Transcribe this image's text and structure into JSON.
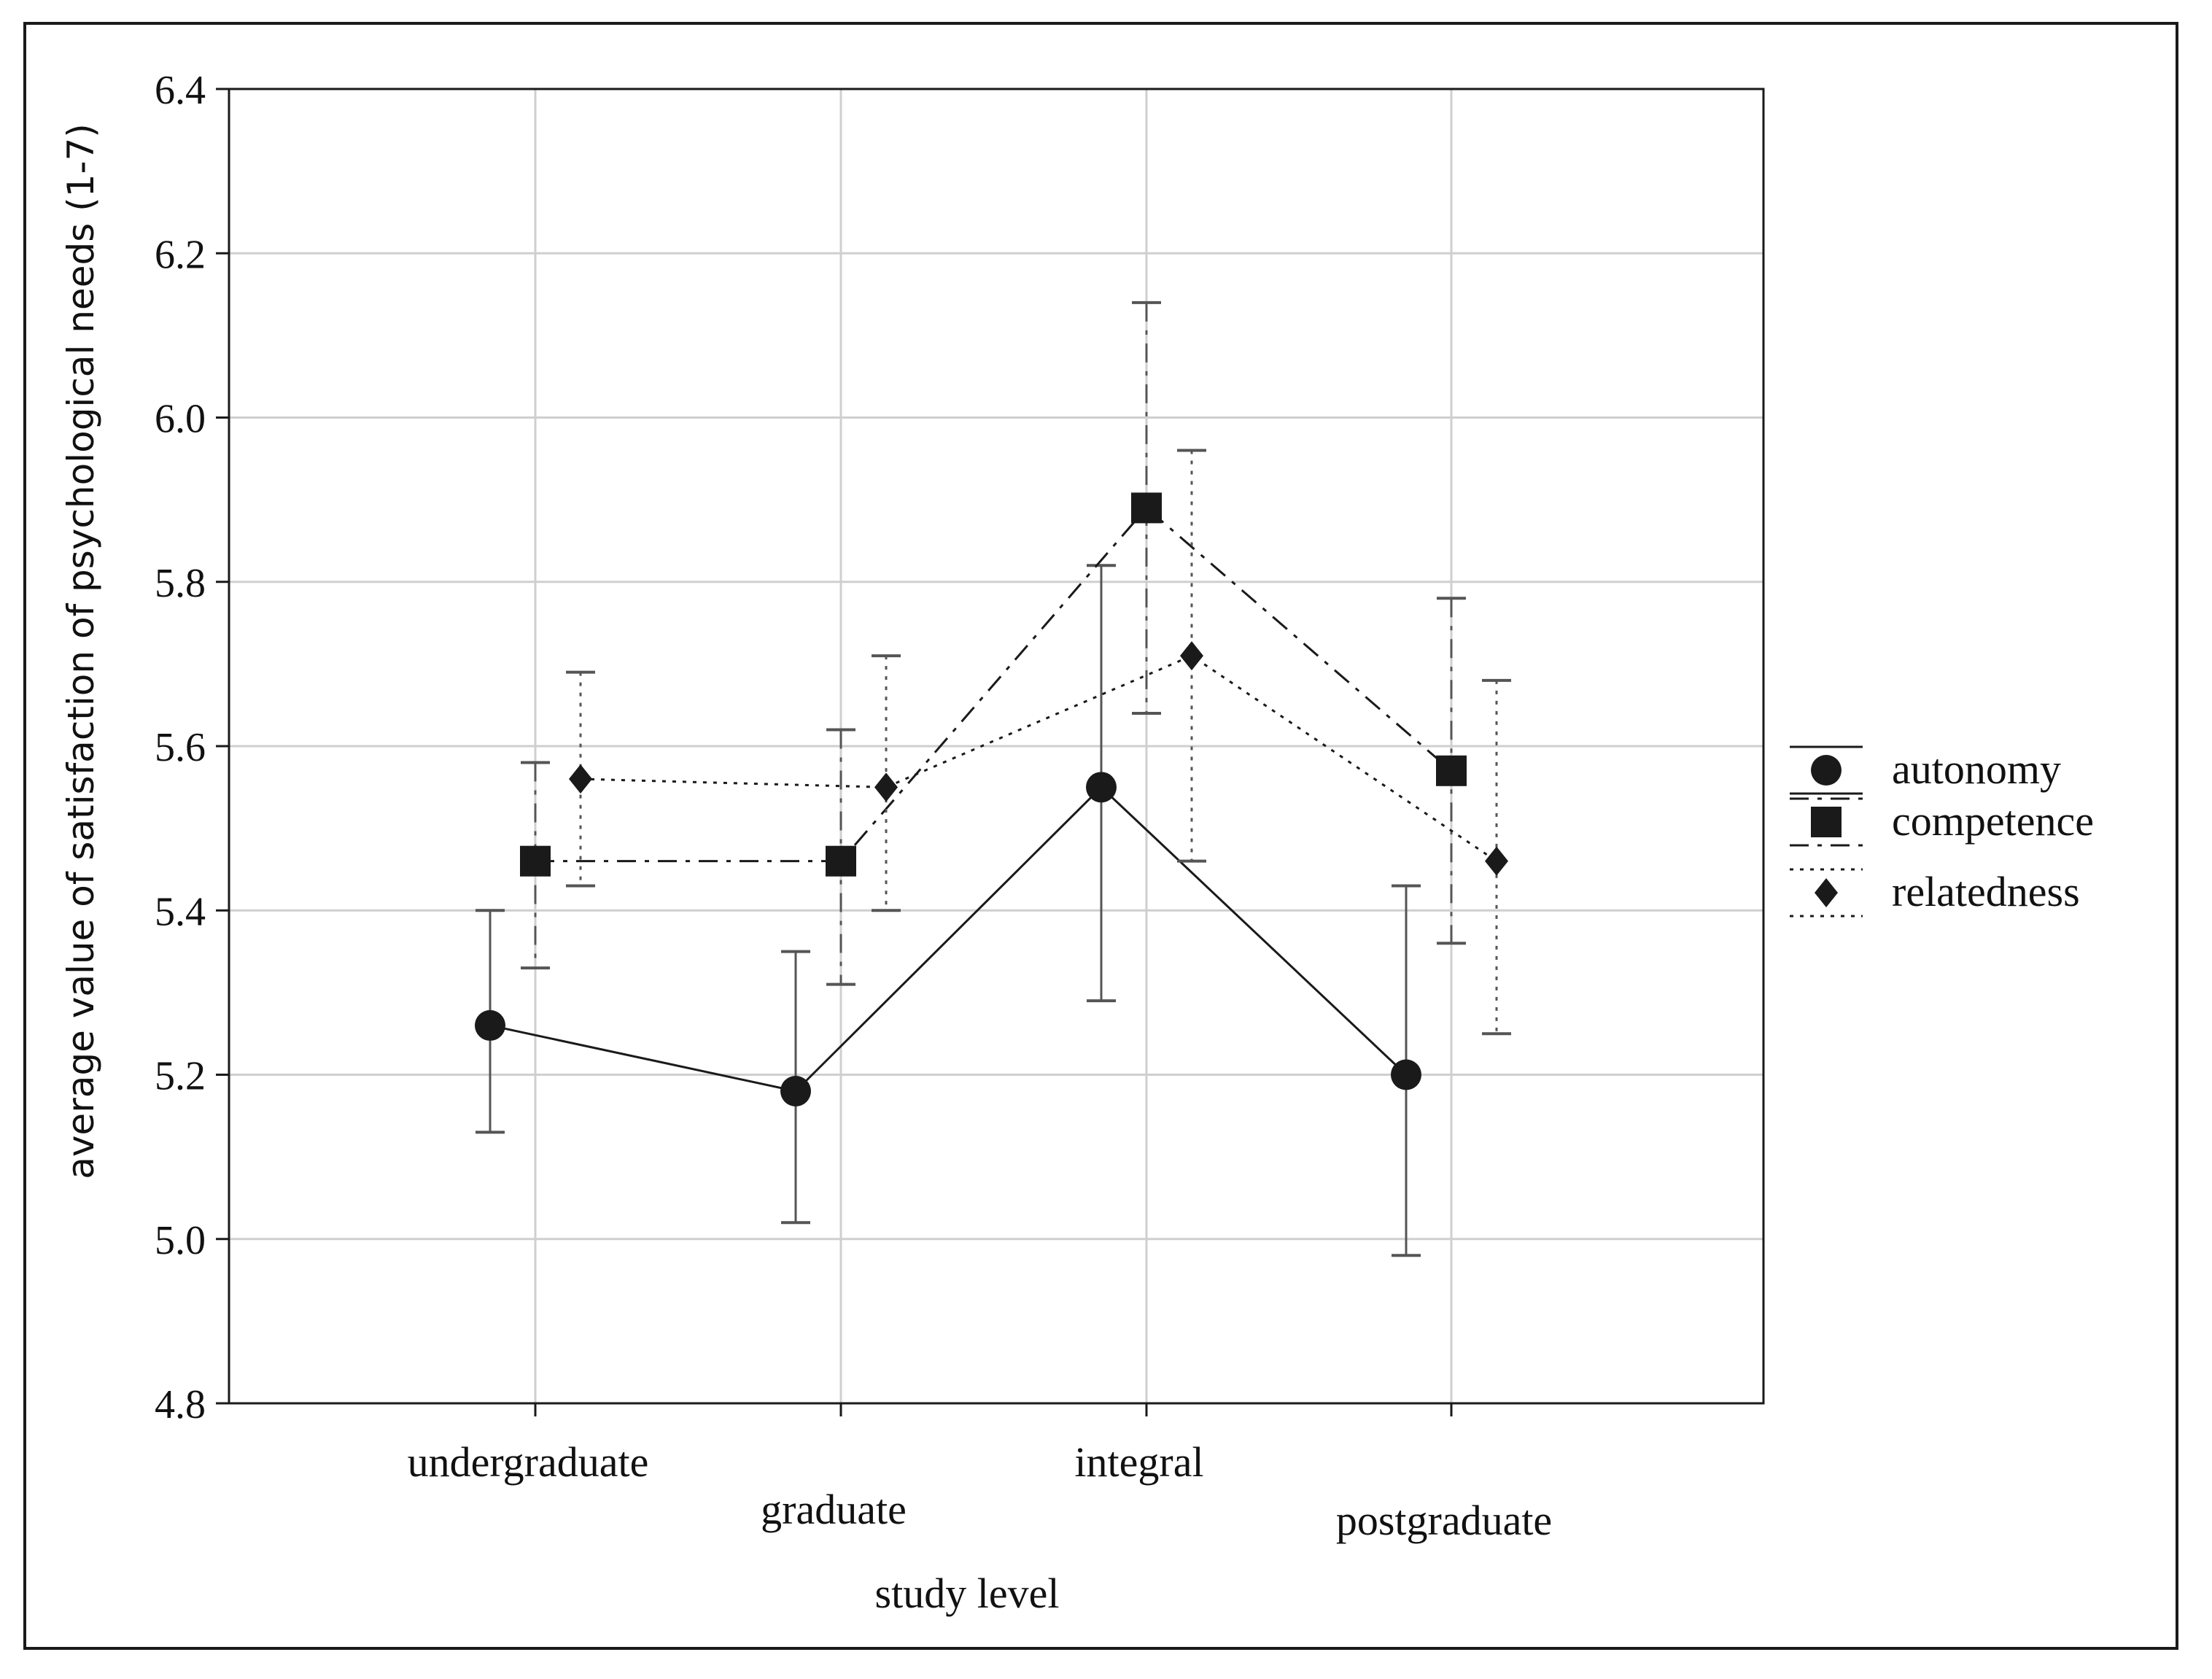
{
  "chart_data": {
    "type": "line",
    "title": "",
    "xlabel": "study level",
    "ylabel": "average value of satisfaction of psychological needs (1-7)",
    "ylim": [
      4.8,
      6.4
    ],
    "yticks": [
      "4.8",
      "5.0",
      "5.2",
      "5.4",
      "5.6",
      "5.8",
      "6.0",
      "6.2",
      "6.4"
    ],
    "categories": [
      "undergraduate",
      "graduate",
      "integral",
      "postgraduate"
    ],
    "grid": true,
    "legend_position": "right",
    "series": [
      {
        "name": "autonomy",
        "marker": "circle",
        "line_style": "solid",
        "values": [
          5.26,
          5.18,
          5.55,
          5.2
        ],
        "lower": [
          5.13,
          5.02,
          5.29,
          4.98
        ],
        "upper": [
          5.4,
          5.35,
          5.82,
          5.43
        ]
      },
      {
        "name": "competence",
        "marker": "square",
        "line_style": "dashdot",
        "values": [
          5.46,
          5.46,
          5.89,
          5.57
        ],
        "lower": [
          5.33,
          5.31,
          5.64,
          5.36
        ],
        "upper": [
          5.58,
          5.62,
          6.14,
          5.78
        ]
      },
      {
        "name": "relatedness",
        "marker": "diamond",
        "line_style": "dotted",
        "values": [
          5.56,
          5.55,
          5.71,
          5.46
        ],
        "lower": [
          5.43,
          5.4,
          5.46,
          5.25
        ],
        "upper": [
          5.69,
          5.71,
          5.96,
          5.68
        ]
      }
    ]
  },
  "colors": {
    "line": "#1a1a1a",
    "error_bar": "#555555",
    "grid": "#cfcfcf",
    "frame": "#1a1a1a"
  }
}
